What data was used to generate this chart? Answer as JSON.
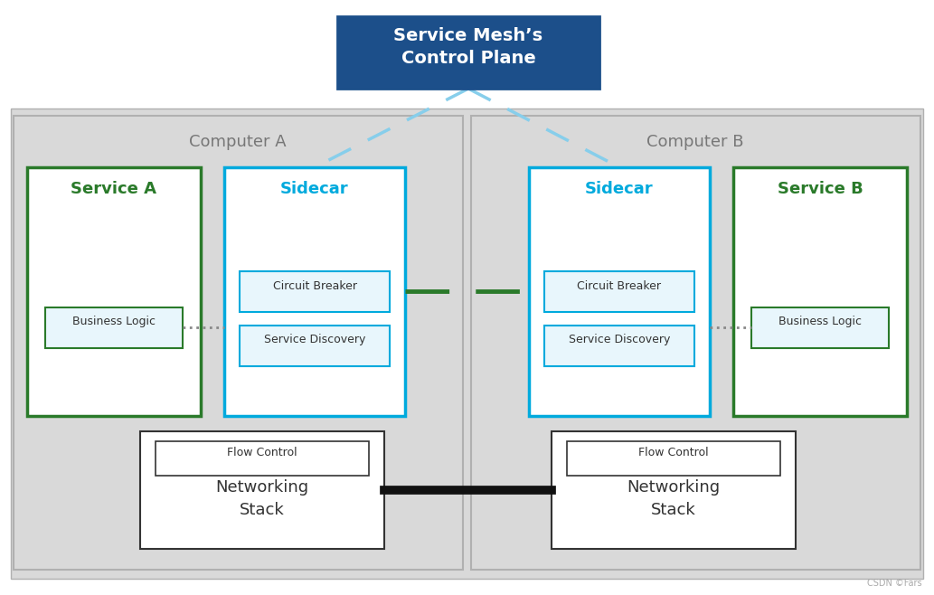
{
  "bg_color": "#ffffff",
  "outer_bg": "#e8e8e8",
  "computer_box_color": "#d9d9d9",
  "computer_box_edge": "#b0b0b0",
  "service_box_color": "#ffffff",
  "service_box_edge": "#2a7a2a",
  "sidecar_box_color": "#ffffff",
  "sidecar_box_edge": "#00aadd",
  "inner_box_color": "#e8f6fc",
  "inner_box_edge_blue": "#00aadd",
  "inner_box_edge_green": "#2a7a2a",
  "network_outer_color": "#ffffff",
  "network_outer_edge": "#333333",
  "network_inner_color": "#ffffff",
  "network_inner_edge": "#333333",
  "control_plane_bg": "#1c4f8a",
  "control_plane_text": "#ffffff",
  "control_plane_label": "Service Mesh’s\nControl Plane",
  "computer_a_label": "Computer A",
  "computer_b_label": "Computer B",
  "service_a_label": "Service A",
  "service_b_label": "Service B",
  "sidecar_label": "Sidecar",
  "business_logic_label": "Business Logic",
  "circuit_breaker_label": "Circuit Breaker",
  "service_discovery_label": "Service Discovery",
  "flow_control_label": "Flow Control",
  "networking_stack_label": "Networking\nStack",
  "service_label_color": "#2a7a2a",
  "sidecar_label_color": "#00aadd",
  "black_line_color": "#111111",
  "green_dash_color": "#2a7a2a",
  "gray_dot_color": "#888888",
  "light_blue_dash_color": "#87ceeb",
  "watermark": "CSDN ©Fars",
  "comp_label_color": "#777777"
}
